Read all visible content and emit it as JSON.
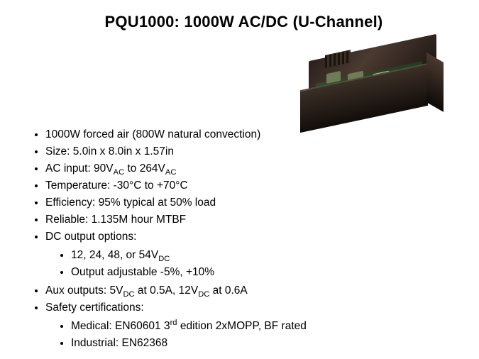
{
  "title": "PQU1000:  1000W AC/DC (U-Channel)",
  "bullets": {
    "b0": "1000W forced air (800W natural convection)",
    "b1": "Size: 5.0in x 8.0in x 1.57in",
    "b2_pre": "AC input: 90V",
    "b2_sub1": "AC",
    "b2_mid": " to 264V",
    "b2_sub2": "AC",
    "b3": "Temperature: -30°C to +70°C",
    "b4": "Efficiency: 95% typical at 50% load",
    "b5": "Reliable: 1.135M hour MTBF",
    "b6": "DC output options:",
    "b6a_pre": "12, 24, 48, or 54V",
    "b6a_sub": "DC",
    "b6b": "Output adjustable -5%, +10%",
    "b7_pre": "Aux outputs: 5V",
    "b7_sub1": "DC",
    "b7_mid": " at 0.5A, 12V",
    "b7_sub2": "DC",
    "b7_post": " at 0.6A",
    "b8": "Safety certifications:",
    "b8a_pre": "Medical: EN60601 3",
    "b8a_sup": "rd",
    "b8a_post": " edition 2xMOPP, BF rated",
    "b8b": "Industrial: EN62368"
  },
  "colors": {
    "background": "#ffffff",
    "text": "#000000"
  },
  "image_alt": "PQU1000 open-frame U-channel power supply"
}
